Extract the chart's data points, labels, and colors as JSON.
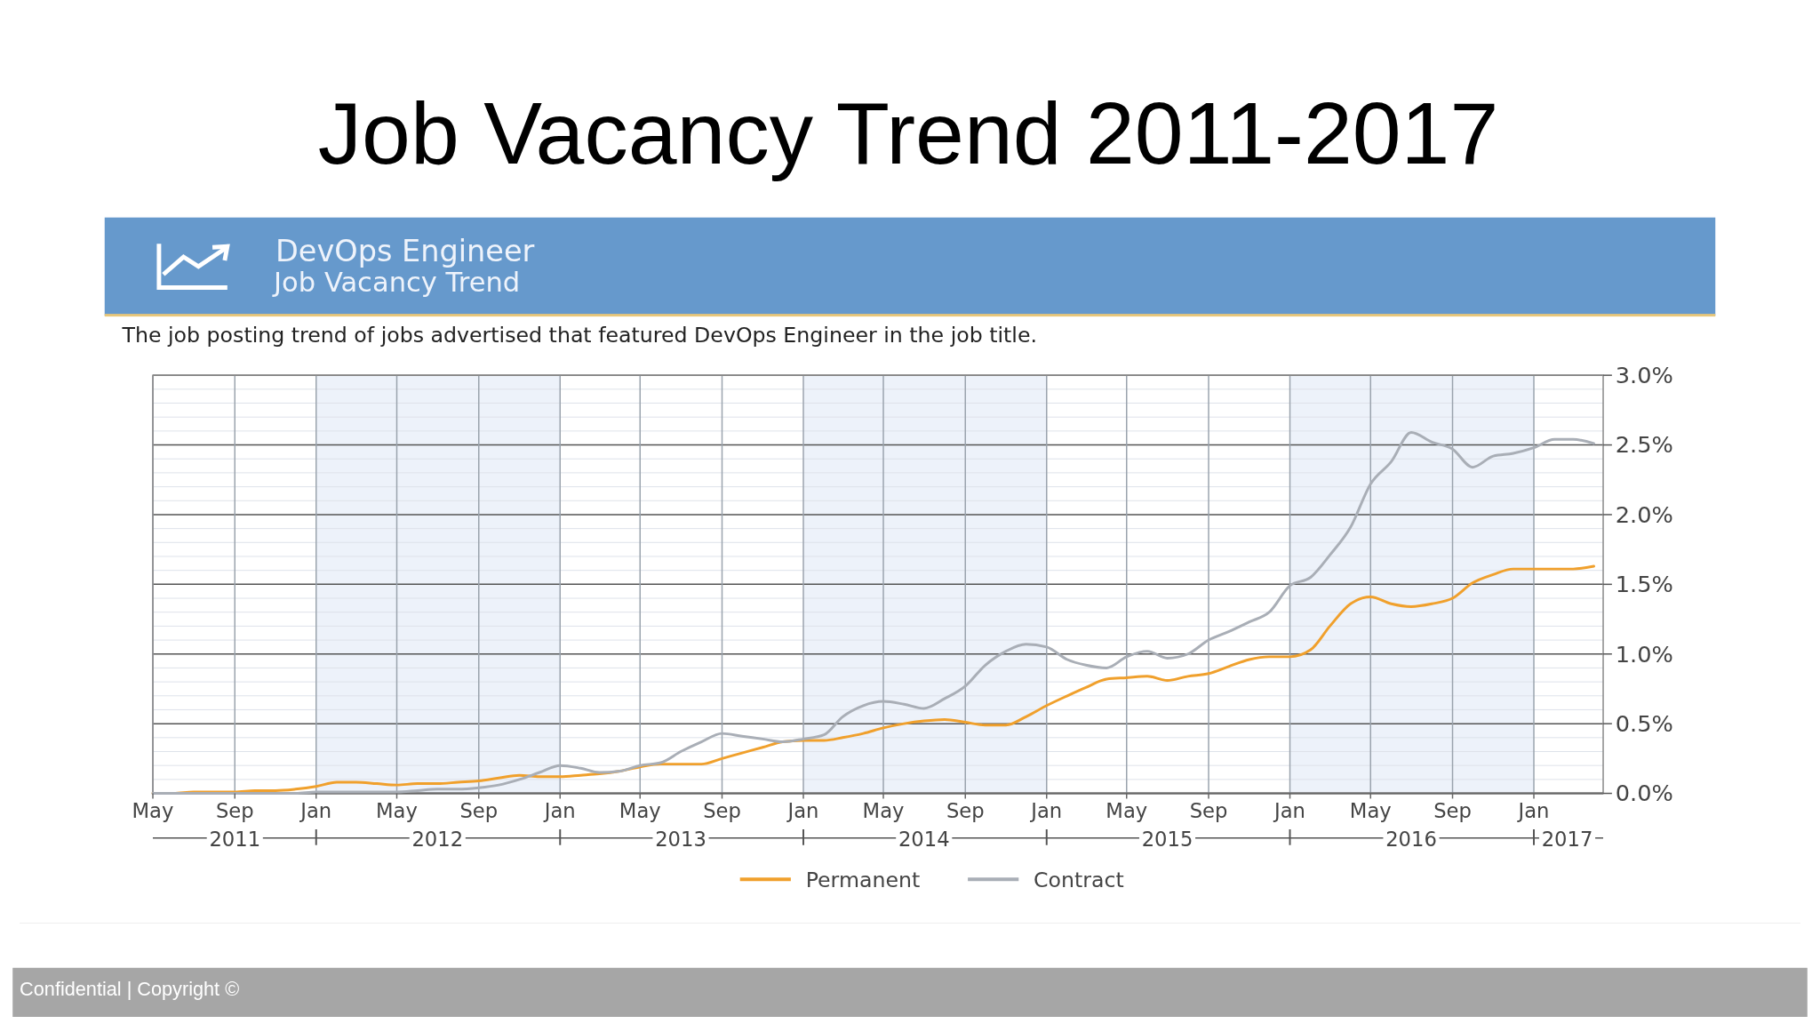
{
  "chart_data": {
    "type": "line",
    "title": "Job Vacancy Trend 2011-2017",
    "subtitle": "DevOps Engineer",
    "annotations": [
      "Job Vacancy Trend",
      "The job posting trend of jobs advertised that featured DevOps Engineer in the job title.",
      "Confidential  |  Copyright ©"
    ],
    "x": [
      "2011-05",
      "2011-06",
      "2011-07",
      "2011-08",
      "2011-09",
      "2011-10",
      "2011-11",
      "2011-12",
      "2012-01",
      "2012-02",
      "2012-03",
      "2012-04",
      "2012-05",
      "2012-06",
      "2012-07",
      "2012-08",
      "2012-09",
      "2012-10",
      "2012-11",
      "2012-12",
      "2013-01",
      "2013-02",
      "2013-03",
      "2013-04",
      "2013-05",
      "2013-06",
      "2013-07",
      "2013-08",
      "2013-09",
      "2013-10",
      "2013-11",
      "2013-12",
      "2014-01",
      "2014-02",
      "2014-03",
      "2014-04",
      "2014-05",
      "2014-06",
      "2014-07",
      "2014-08",
      "2014-09",
      "2014-10",
      "2014-11",
      "2014-12",
      "2015-01",
      "2015-02",
      "2015-03",
      "2015-04",
      "2015-05",
      "2015-06",
      "2015-07",
      "2015-08",
      "2015-09",
      "2015-10",
      "2015-11",
      "2015-12",
      "2016-01",
      "2016-02",
      "2016-03",
      "2016-04",
      "2016-05",
      "2016-06",
      "2016-07",
      "2016-08",
      "2016-09",
      "2016-10",
      "2016-11",
      "2016-12",
      "2017-01",
      "2017-02",
      "2017-03",
      "2017-04"
    ],
    "series": [
      {
        "name": "Permanent",
        "color": "#f0a02c",
        "values": [
          0,
          0,
          0.01,
          0.01,
          0.01,
          0.02,
          0.02,
          0.03,
          0.05,
          0.08,
          0.08,
          0.07,
          0.06,
          0.07,
          0.07,
          0.08,
          0.09,
          0.11,
          0.13,
          0.12,
          0.12,
          0.13,
          0.14,
          0.16,
          0.19,
          0.21,
          0.21,
          0.21,
          0.25,
          0.29,
          0.33,
          0.37,
          0.38,
          0.38,
          0.4,
          0.43,
          0.47,
          0.5,
          0.52,
          0.53,
          0.51,
          0.49,
          0.49,
          0.55,
          0.63,
          0.7,
          0.76,
          0.82,
          0.83,
          0.84,
          0.81,
          0.84,
          0.86,
          0.91,
          0.96,
          0.98,
          0.98,
          1.03,
          1.2,
          1.36,
          1.41,
          1.36,
          1.34,
          1.36,
          1.4,
          1.51,
          1.57,
          1.61,
          1.61,
          1.61,
          1.61,
          1.63
        ]
      },
      {
        "name": "Contract",
        "color": "#a9aeb6",
        "values": [
          0,
          0,
          0,
          0,
          0,
          0,
          0,
          0,
          0.01,
          0.01,
          0.01,
          0.01,
          0.01,
          0.02,
          0.03,
          0.03,
          0.04,
          0.06,
          0.1,
          0.15,
          0.2,
          0.18,
          0.15,
          0.16,
          0.2,
          0.22,
          0.3,
          0.37,
          0.43,
          0.41,
          0.39,
          0.37,
          0.39,
          0.42,
          0.55,
          0.63,
          0.66,
          0.64,
          0.61,
          0.68,
          0.77,
          0.92,
          1.02,
          1.07,
          1.05,
          0.96,
          0.92,
          0.9,
          0.98,
          1.02,
          0.97,
          1.0,
          1.1,
          1.16,
          1.23,
          1.3,
          1.49,
          1.55,
          1.71,
          1.91,
          2.22,
          2.38,
          2.59,
          2.52,
          2.47,
          2.34,
          2.42,
          2.44,
          2.48,
          2.54,
          2.54,
          2.51
        ]
      }
    ],
    "xlim": [
      "2011-05",
      "2017-04-15"
    ],
    "xticks": [
      {
        "value": "2011-05",
        "label": "May"
      },
      {
        "value": "2011-09",
        "label": "Sep"
      },
      {
        "value": "2012-01",
        "label": "Jan"
      },
      {
        "value": "2012-05",
        "label": "May"
      },
      {
        "value": "2012-09",
        "label": "Sep"
      },
      {
        "value": "2013-01",
        "label": "Jan"
      },
      {
        "value": "2013-05",
        "label": "May"
      },
      {
        "value": "2013-09",
        "label": "Sep"
      },
      {
        "value": "2014-01",
        "label": "Jan"
      },
      {
        "value": "2014-05",
        "label": "May"
      },
      {
        "value": "2014-09",
        "label": "Sep"
      },
      {
        "value": "2015-01",
        "label": "Jan"
      },
      {
        "value": "2015-05",
        "label": "May"
      },
      {
        "value": "2015-09",
        "label": "Sep"
      },
      {
        "value": "2016-01",
        "label": "Jan"
      },
      {
        "value": "2016-05",
        "label": "May"
      },
      {
        "value": "2016-09",
        "label": "Sep"
      },
      {
        "value": "2017-01",
        "label": "Jan"
      }
    ],
    "x2lim": [
      "2011-05",
      "2017-04-15"
    ],
    "x2ticks": [
      {
        "value": "2011-09",
        "label": "2011"
      },
      {
        "value": "2012-01",
        "label": null
      },
      {
        "value": "2012-07",
        "label": "2012"
      },
      {
        "value": "2013-01",
        "label": null
      },
      {
        "value": "2013-07",
        "label": "2013"
      },
      {
        "value": "2014-01",
        "label": null
      },
      {
        "value": "2014-07",
        "label": "2014"
      },
      {
        "value": "2015-01",
        "label": null
      },
      {
        "value": "2015-07",
        "label": "2015"
      },
      {
        "value": "2016-01",
        "label": null
      },
      {
        "value": "2016-07",
        "label": "2016"
      },
      {
        "value": "2017-01",
        "label": null
      },
      {
        "value": "2017-02-20",
        "label": "2017"
      }
    ],
    "ylim": [
      0,
      3
    ],
    "yticks": [
      {
        "value": 0,
        "label": "0.0%"
      },
      {
        "value": 0.1,
        "label": null
      },
      {
        "value": 0.2,
        "label": null
      },
      {
        "value": 0.3,
        "label": null
      },
      {
        "value": 0.4,
        "label": null
      },
      {
        "value": 0.5,
        "label": "0.5%"
      },
      {
        "value": 0.6,
        "label": null
      },
      {
        "value": 0.7,
        "label": null
      },
      {
        "value": 0.8,
        "label": null
      },
      {
        "value": 0.9,
        "label": null
      },
      {
        "value": 1,
        "label": "1.0%"
      },
      {
        "value": 1.1,
        "label": null
      },
      {
        "value": 1.2,
        "label": null
      },
      {
        "value": 1.3,
        "label": null
      },
      {
        "value": 1.4,
        "label": null
      },
      {
        "value": 1.5,
        "label": "1.5%"
      },
      {
        "value": 1.6,
        "label": null
      },
      {
        "value": 1.7,
        "label": null
      },
      {
        "value": 1.8,
        "label": null
      },
      {
        "value": 1.9,
        "label": null
      },
      {
        "value": 2,
        "label": "2.0%"
      },
      {
        "value": 2.1,
        "label": null
      },
      {
        "value": 2.2,
        "label": null
      },
      {
        "value": 2.3,
        "label": null
      },
      {
        "value": 2.4,
        "label": null
      },
      {
        "value": 2.5,
        "label": "2.5%"
      },
      {
        "value": 2.6,
        "label": null
      },
      {
        "value": 2.7,
        "label": null
      },
      {
        "value": 2.8,
        "label": null
      },
      {
        "value": 2.9,
        "label": null
      },
      {
        "value": 3,
        "label": "3.0%"
      }
    ],
    "bands": [
      {
        "axis": "x",
        "from": "2012-01",
        "to": "2013-01",
        "color": "#edf2fa"
      },
      {
        "axis": "x",
        "from": "2014-01",
        "to": "2015-01",
        "color": "#edf2fa"
      },
      {
        "axis": "x",
        "from": "2016-01",
        "to": "2017-01",
        "color": "#edf2fa"
      }
    ],
    "grid": true,
    "legend": "bottom",
    "marker": "none",
    "line_style": "solid"
  }
}
